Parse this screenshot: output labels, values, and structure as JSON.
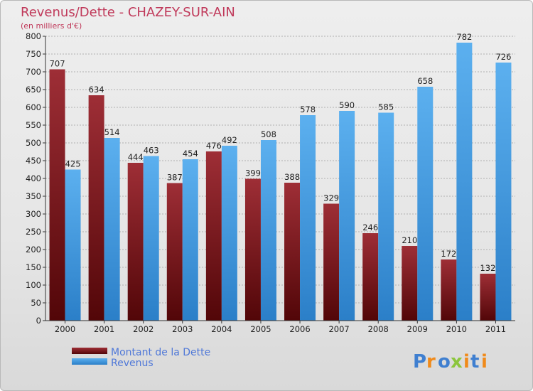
{
  "colors": {
    "series_1": "#7a0f14",
    "series_2": "#3a93dd",
    "title": "#c0395a",
    "legend_text": "#4f78d8"
  },
  "chart_data": {
    "type": "bar",
    "title": "Revenus/Dette - CHAZEY-SUR-AIN",
    "subtitle": "(en milliers d'€)",
    "categories": [
      "2000",
      "2001",
      "2002",
      "2003",
      "2004",
      "2005",
      "2006",
      "2007",
      "2008",
      "2009",
      "2010",
      "2011"
    ],
    "series": [
      {
        "name": "Montant de la Dette",
        "values": [
          707,
          634,
          444,
          387,
          476,
          399,
          388,
          329,
          246,
          210,
          172,
          132
        ]
      },
      {
        "name": "Revenus",
        "values": [
          425,
          514,
          463,
          454,
          492,
          508,
          578,
          590,
          585,
          658,
          782,
          726
        ]
      }
    ],
    "ylim": [
      0,
      800
    ],
    "yticks": [
      "0",
      "50",
      "100",
      "150",
      "200",
      "250",
      "300",
      "350",
      "400",
      "450",
      "500",
      "550",
      "600",
      "650",
      "700",
      "750",
      "800"
    ],
    "grid": true,
    "legend": "bottom-left"
  },
  "logo": {
    "letters": [
      "P",
      "r",
      "o",
      "x",
      "i",
      "t",
      "i"
    ]
  }
}
